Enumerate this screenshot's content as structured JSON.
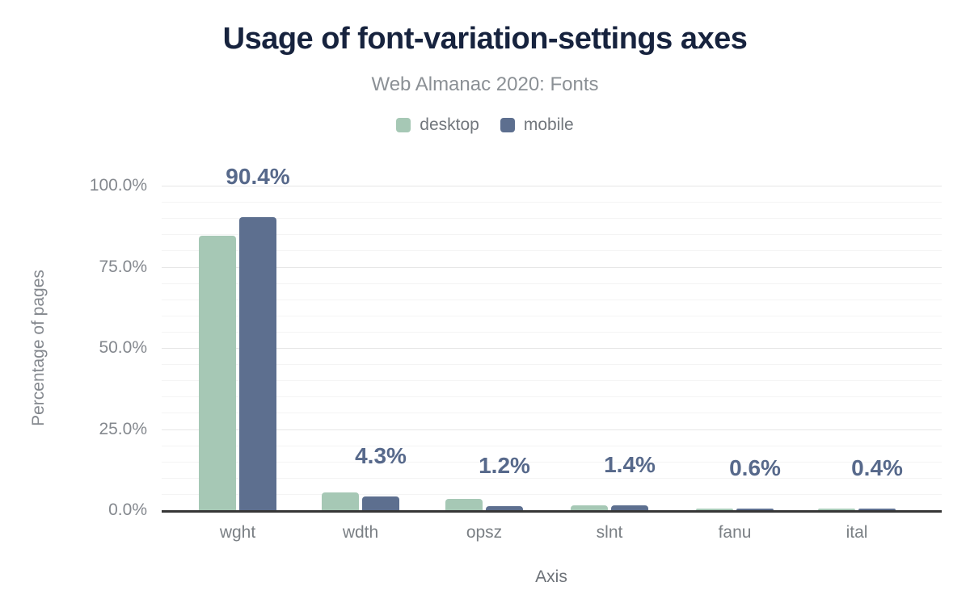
{
  "header": {
    "title": "Usage of font-variation-settings axes",
    "subtitle": "Web Almanac 2020: Fonts"
  },
  "legend": {
    "items": [
      {
        "label": "desktop",
        "color": "#a6c8b5"
      },
      {
        "label": "mobile",
        "color": "#5d6f8f"
      }
    ]
  },
  "chart_data": {
    "type": "bar",
    "title": "Usage of font-variation-settings axes",
    "subtitle": "Web Almanac 2020: Fonts",
    "categories": [
      "wght",
      "wdth",
      "opsz",
      "slnt",
      "fanu",
      "ital"
    ],
    "series": [
      {
        "name": "desktop",
        "color": "#a6c8b5",
        "values": [
          84.5,
          5.4,
          3.4,
          1.6,
          0.6,
          0.4
        ]
      },
      {
        "name": "mobile",
        "color": "#5d6f8f",
        "values": [
          90.4,
          4.3,
          1.2,
          1.4,
          0.6,
          0.4
        ]
      }
    ],
    "value_labels": [
      "90.4%",
      "4.3%",
      "1.2%",
      "1.4%",
      "0.6%",
      "0.4%"
    ],
    "xlabel": "Axis",
    "ylabel": "Percentage of pages",
    "ylim": [
      0,
      100
    ],
    "yticks": [
      "0.0%",
      "25.0%",
      "50.0%",
      "75.0%",
      "100.0%"
    ],
    "grid": {
      "major_interval_pct": 25,
      "minor_interval_pct": 5,
      "grid_on": true
    },
    "legend_position": "top",
    "value_labels_follow_series": "mobile"
  },
  "colors": {
    "background": "#ffffff",
    "title_text": "#17233e",
    "subtitle_text": "#8b9095",
    "axis_text": "#84888e",
    "category_text": "#7b8085",
    "data_label_text": "#57698b",
    "axis_line": "#363636",
    "grid_major": "#e6e6e6",
    "grid_minor": "#f4f4f4",
    "desktop_bar": "#a6c8b5",
    "mobile_bar": "#5d6f8f"
  }
}
